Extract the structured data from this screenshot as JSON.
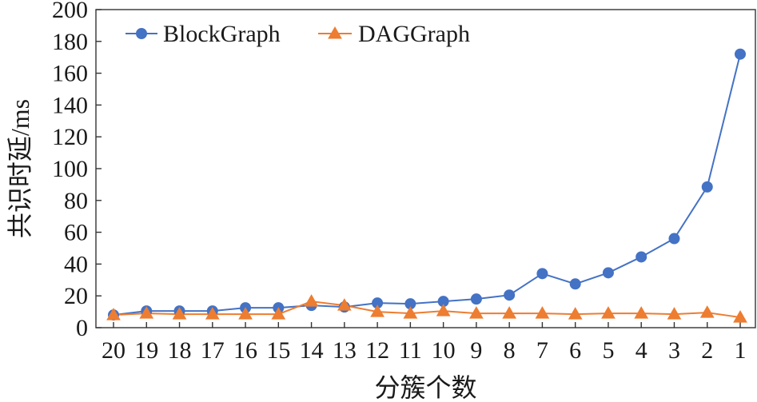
{
  "chart_data": {
    "type": "line",
    "xlabel": "分簇个数",
    "ylabel": "共识时延/ms",
    "categories": [
      "20",
      "19",
      "18",
      "17",
      "16",
      "15",
      "14",
      "13",
      "12",
      "11",
      "10",
      "9",
      "8",
      "7",
      "6",
      "5",
      "4",
      "3",
      "2",
      "1"
    ],
    "ylim": [
      0,
      200
    ],
    "yticks": [
      "0",
      "20",
      "40",
      "60",
      "80",
      "100",
      "120",
      "140",
      "160",
      "180",
      "200"
    ],
    "grid": false,
    "legend_position": "top-left",
    "series": [
      {
        "name": "BlockGraph",
        "color": "#4472C4",
        "marker": "circle",
        "values": [
          8,
          10.5,
          10.5,
          10.5,
          12.5,
          12.5,
          14,
          13,
          15.5,
          15,
          16.5,
          18,
          20.5,
          34,
          27.5,
          34.5,
          44.5,
          56,
          88.5,
          172
        ]
      },
      {
        "name": "DAGGraph",
        "color": "#ED7D31",
        "marker": "triangle",
        "values": [
          8,
          9,
          8.5,
          8.5,
          8.5,
          8.5,
          16.5,
          14,
          10,
          9,
          10.5,
          9,
          9,
          9,
          8.5,
          9,
          9,
          8.5,
          9.5,
          6.5
        ]
      }
    ]
  }
}
